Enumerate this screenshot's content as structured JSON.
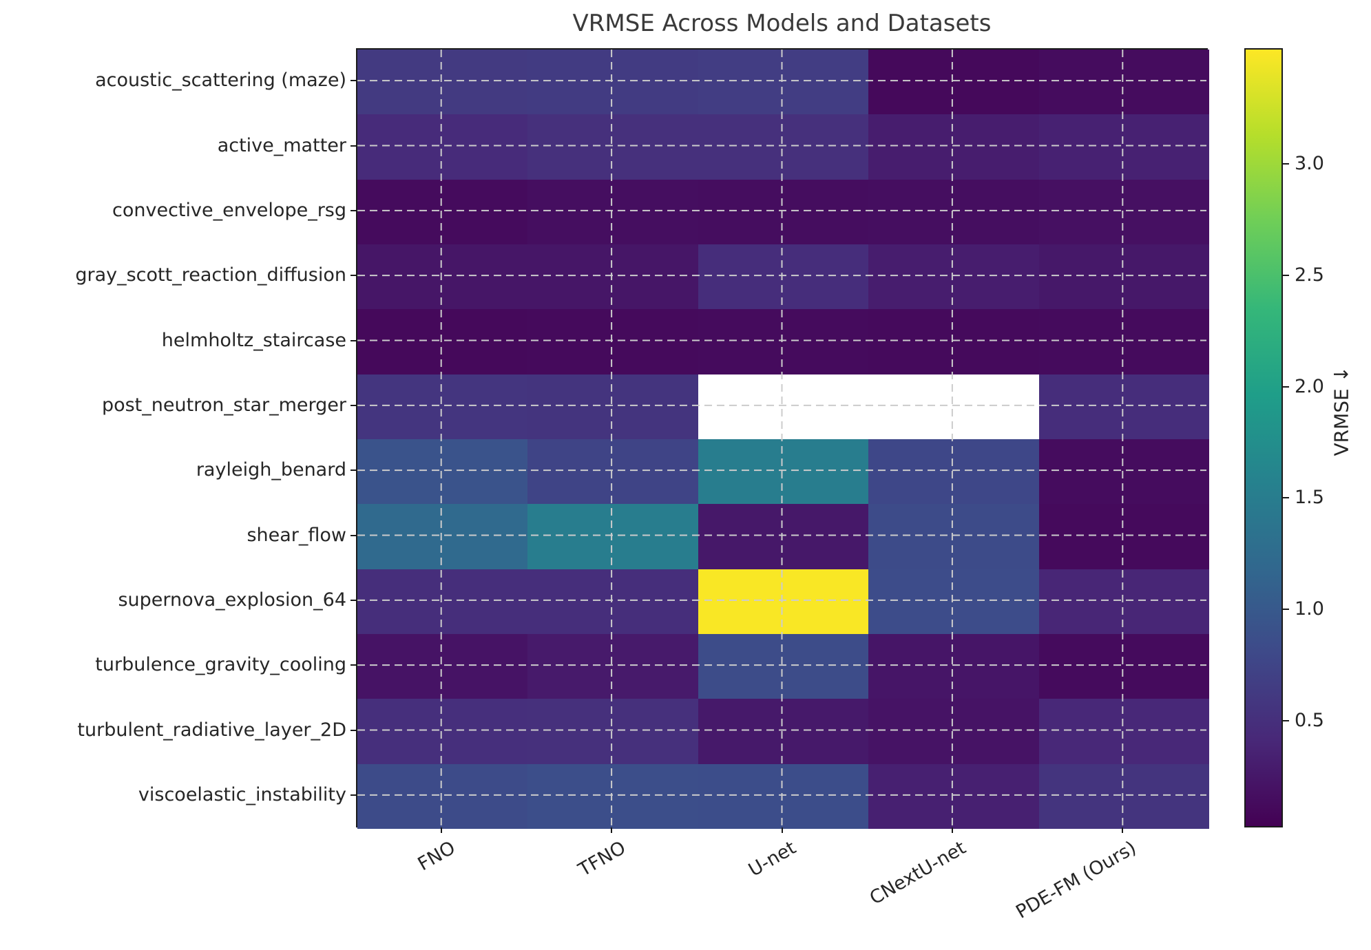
{
  "chart_data": {
    "type": "heatmap",
    "title": "VRMSE Across Models and Datasets",
    "x_categories": [
      "FNO",
      "TFNO",
      "U-net",
      "CNextU-net",
      "PDE-FM (Ours)"
    ],
    "y_categories": [
      "acoustic_scattering (maze)",
      "active_matter",
      "convective_envelope_rsg",
      "gray_scott_reaction_diffusion",
      "helmholtz_staircase",
      "post_neutron_star_merger",
      "rayleigh_benard",
      "shear_flow",
      "supernova_explosion_64",
      "turbulence_gravity_cooling",
      "turbulent_radiative_layer_2D",
      "viscoelastic_instability"
    ],
    "values": [
      [
        0.62,
        0.63,
        0.66,
        0.1,
        0.13
      ],
      [
        0.45,
        0.5,
        0.5,
        0.3,
        0.34
      ],
      [
        0.12,
        0.15,
        0.14,
        0.15,
        0.17
      ],
      [
        0.23,
        0.23,
        0.47,
        0.3,
        0.25
      ],
      [
        0.1,
        0.11,
        0.12,
        0.11,
        0.12
      ],
      [
        0.56,
        0.55,
        null,
        null,
        0.47
      ],
      [
        0.92,
        0.74,
        1.5,
        0.78,
        0.13
      ],
      [
        1.22,
        1.5,
        0.25,
        0.82,
        0.11
      ],
      [
        0.48,
        0.48,
        3.5,
        0.84,
        0.39
      ],
      [
        0.2,
        0.27,
        0.83,
        0.22,
        0.12
      ],
      [
        0.49,
        0.5,
        0.26,
        0.2,
        0.41
      ],
      [
        0.82,
        0.86,
        0.85,
        0.33,
        0.55
      ]
    ],
    "missing_cells_rendered_as": "white",
    "colorbar": {
      "label": "VRMSE ↓",
      "ticks": [
        0.5,
        1.0,
        1.5,
        2.0,
        2.5,
        3.0
      ],
      "vmin": 0.02,
      "vmax": 3.52
    },
    "colormap": {
      "name": "viridis",
      "stops": [
        "#440154",
        "#482878",
        "#3e4989",
        "#31688e",
        "#26828e",
        "#1f9e89",
        "#35b779",
        "#6ece58",
        "#b5de2b",
        "#fde725"
      ],
      "nan_color": "#ffffff"
    },
    "grid": {
      "visible": true,
      "style": "dashed",
      "color": "#cccccc"
    },
    "axis_color": "#1a1a1a"
  }
}
